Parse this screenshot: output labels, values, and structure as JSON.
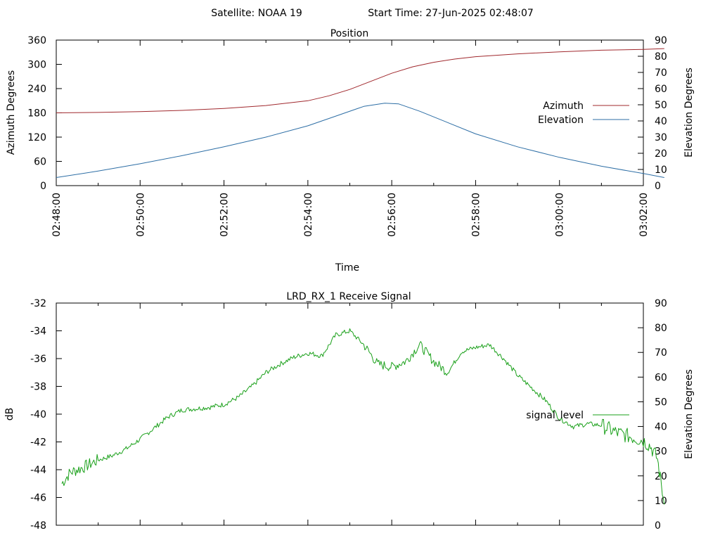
{
  "header": {
    "satellite_label": "Satellite: NOAA 19",
    "start_time_label": "Start Time: 27-Jun-2025 02:48:07"
  },
  "chart_data": [
    {
      "type": "line",
      "title": "Position",
      "xlabel": "Time",
      "ylabel": "Azimuth Degrees",
      "y2label": "Elevation Degrees",
      "x_ticks": [
        "02:48:00",
        "02:50:00",
        "02:52:00",
        "02:54:00",
        "02:56:00",
        "02:58:00",
        "03:00:00",
        "03:02:00"
      ],
      "x_range_seconds": [
        0,
        840
      ],
      "ylim": [
        0,
        360
      ],
      "y_ticks": [
        0,
        60,
        120,
        180,
        240,
        300,
        360
      ],
      "y2lim": [
        0,
        90
      ],
      "y2_ticks": [
        0,
        10,
        20,
        30,
        40,
        50,
        60,
        70,
        80,
        90
      ],
      "legend_position": "right",
      "series": [
        {
          "name": "Azimuth",
          "axis": "y",
          "color": "#a0282d",
          "x": [
            0,
            60,
            120,
            180,
            240,
            300,
            360,
            390,
            420,
            450,
            480,
            510,
            540,
            570,
            600,
            660,
            720,
            780,
            840,
            870
          ],
          "y": [
            180,
            181,
            183,
            186,
            191,
            198,
            210,
            222,
            238,
            258,
            278,
            294,
            305,
            313,
            319,
            326,
            331,
            335,
            337,
            339
          ]
        },
        {
          "name": "Elevation",
          "axis": "y2",
          "color": "#2d6ea5",
          "x": [
            0,
            60,
            120,
            180,
            240,
            300,
            360,
            400,
            440,
            470,
            490,
            520,
            560,
            600,
            660,
            720,
            780,
            840,
            870
          ],
          "y": [
            5,
            9,
            13.5,
            18.5,
            24,
            30,
            37,
            43,
            49,
            51,
            50.5,
            46,
            39,
            32,
            24,
            17.5,
            12,
            7.5,
            5
          ]
        }
      ]
    },
    {
      "type": "line",
      "title": "LRD_RX_1 Receive Signal",
      "ylabel": "dB",
      "y2label": "Elevation Degrees",
      "x_range_seconds": [
        0,
        840
      ],
      "ylim": [
        -48,
        -32
      ],
      "y_ticks": [
        -48,
        -46,
        -44,
        -42,
        -40,
        -38,
        -36,
        -34,
        -32
      ],
      "y2lim": [
        0,
        90
      ],
      "y2_ticks": [
        0,
        10,
        20,
        30,
        40,
        50,
        60,
        70,
        80,
        90
      ],
      "legend_position": "right",
      "series": [
        {
          "name": "signal_level",
          "axis": "y",
          "color": "#1aa01a",
          "x": [
            8,
            20,
            40,
            60,
            80,
            100,
            120,
            140,
            160,
            180,
            200,
            220,
            240,
            260,
            280,
            300,
            320,
            340,
            360,
            380,
            400,
            420,
            440,
            460,
            480,
            500,
            520,
            540,
            560,
            580,
            600,
            620,
            640,
            660,
            680,
            700,
            720,
            740,
            760,
            780,
            800,
            820,
            840,
            850,
            860,
            870
          ],
          "y": [
            -45.0,
            -44.2,
            -43.8,
            -43.3,
            -43.0,
            -42.5,
            -41.8,
            -41.0,
            -40.2,
            -39.7,
            -39.6,
            -39.5,
            -39.3,
            -38.8,
            -38.0,
            -37.0,
            -36.4,
            -35.9,
            -35.6,
            -35.8,
            -34.3,
            -34.0,
            -35.0,
            -36.4,
            -36.6,
            -36.2,
            -35.0,
            -36.2,
            -37.0,
            -35.5,
            -35.2,
            -35.0,
            -36.0,
            -37.2,
            -38.1,
            -39.0,
            -40.3,
            -40.9,
            -40.7,
            -40.8,
            -41.3,
            -41.6,
            -41.9,
            -42.3,
            -43.2,
            -46.5
          ]
        }
      ]
    }
  ]
}
